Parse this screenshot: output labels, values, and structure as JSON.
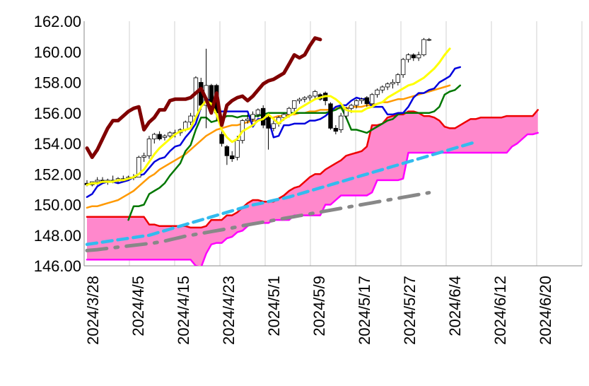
{
  "chart_data": {
    "type": "line",
    "title": "",
    "xlabel": "",
    "ylabel": "",
    "ylim": [
      146,
      162
    ],
    "yticks": [
      "162.00",
      "160.00",
      "158.00",
      "156.00",
      "154.00",
      "152.00",
      "150.00",
      "148.00",
      "146.00"
    ],
    "xticks": [
      "2024/3/28",
      "2024/4/5",
      "2024/4/15",
      "2024/4/23",
      "2024/5/1",
      "2024/5/9",
      "2024/5/17",
      "2024/5/27",
      "2024/6/4",
      "2024/6/12",
      "2024/6/20"
    ],
    "grid": "vertical",
    "colors": {
      "cloud": "#ff88cc",
      "span_a": "#ee0000",
      "span_b": "#ff00ff",
      "lagging": "#800000",
      "conversion": "#0000dd",
      "base": "#007700",
      "yellow_ma": "#ffff00",
      "orange_ma": "#ff9900",
      "blue_dashed": "#33bbee",
      "gray_dashdot": "#888888"
    },
    "candles_ohlc": [
      [
        151.4,
        151.6,
        151.2,
        151.3
      ],
      [
        151.3,
        151.5,
        151.2,
        151.5
      ],
      [
        151.5,
        151.8,
        151.3,
        151.6
      ],
      [
        151.6,
        151.8,
        151.4,
        151.5
      ],
      [
        151.5,
        151.7,
        151.3,
        151.6
      ],
      [
        151.6,
        151.9,
        151.4,
        151.6
      ],
      [
        151.6,
        151.8,
        151.4,
        151.7
      ],
      [
        151.7,
        151.9,
        151.5,
        151.7
      ],
      [
        151.7,
        151.9,
        151.6,
        151.8
      ],
      [
        151.8,
        152.0,
        151.6,
        151.8
      ],
      [
        151.8,
        153.2,
        151.8,
        153.1
      ],
      [
        153.1,
        153.4,
        152.8,
        153.2
      ],
      [
        153.2,
        154.5,
        153.0,
        154.3
      ],
      [
        154.3,
        154.7,
        154.0,
        154.6
      ],
      [
        154.6,
        154.8,
        154.2,
        154.3
      ],
      [
        154.4,
        154.6,
        154.2,
        154.5
      ],
      [
        154.5,
        154.8,
        154.3,
        154.7
      ],
      [
        154.7,
        154.9,
        154.4,
        154.7
      ],
      [
        154.7,
        155.0,
        154.5,
        154.9
      ],
      [
        154.9,
        155.5,
        154.8,
        155.4
      ],
      [
        155.4,
        156.0,
        155.2,
        155.8
      ],
      [
        155.8,
        158.4,
        155.6,
        158.3
      ],
      [
        158.0,
        158.3,
        156.2,
        156.5
      ],
      [
        156.5,
        160.2,
        155.0,
        157.8
      ],
      [
        157.8,
        157.9,
        156.0,
        156.2
      ],
      [
        157.8,
        157.9,
        155.5,
        156.0
      ],
      [
        154.6,
        154.8,
        153.8,
        154.0
      ],
      [
        153.8,
        153.9,
        152.6,
        153.2
      ],
      [
        153.2,
        153.5,
        152.8,
        153.0
      ],
      [
        153.1,
        154.5,
        152.9,
        154.2
      ],
      [
        154.2,
        155.6,
        154.0,
        155.5
      ],
      [
        155.5,
        155.9,
        155.3,
        155.6
      ],
      [
        155.6,
        156.1,
        155.4,
        155.9
      ],
      [
        155.9,
        156.3,
        155.7,
        156.2
      ],
      [
        156.3,
        156.5,
        155.0,
        155.2
      ],
      [
        155.7,
        155.9,
        153.6,
        155.0
      ],
      [
        155.0,
        155.5,
        154.8,
        155.3
      ],
      [
        155.3,
        155.8,
        155.1,
        155.7
      ],
      [
        155.7,
        156.0,
        155.5,
        155.9
      ],
      [
        155.9,
        156.4,
        155.7,
        156.3
      ],
      [
        156.3,
        156.8,
        156.1,
        156.8
      ],
      [
        156.8,
        157.0,
        156.6,
        156.9
      ],
      [
        156.9,
        157.1,
        156.7,
        157.0
      ],
      [
        157.0,
        157.2,
        156.8,
        157.1
      ],
      [
        157.1,
        157.5,
        156.9,
        157.4
      ],
      [
        157.2,
        157.3,
        156.8,
        156.9
      ],
      [
        157.3,
        157.4,
        156.5,
        156.8
      ],
      [
        156.6,
        156.7,
        154.9,
        155.0
      ],
      [
        155.0,
        155.2,
        154.6,
        154.8
      ],
      [
        154.9,
        156.0,
        154.7,
        155.8
      ],
      [
        155.8,
        156.4,
        155.6,
        156.3
      ],
      [
        156.3,
        156.6,
        156.0,
        156.5
      ],
      [
        156.5,
        156.9,
        156.3,
        156.8
      ],
      [
        156.8,
        157.0,
        156.6,
        156.9
      ],
      [
        157.0,
        157.1,
        156.4,
        156.6
      ],
      [
        156.6,
        157.3,
        156.4,
        157.2
      ],
      [
        157.2,
        157.6,
        157.0,
        157.5
      ],
      [
        157.5,
        157.8,
        157.3,
        157.7
      ],
      [
        157.7,
        158.0,
        157.5,
        157.9
      ],
      [
        157.9,
        158.2,
        157.6,
        158.0
      ],
      [
        158.0,
        158.6,
        157.8,
        158.5
      ],
      [
        158.5,
        159.6,
        158.3,
        159.5
      ],
      [
        159.5,
        159.9,
        159.3,
        159.8
      ],
      [
        159.8,
        159.9,
        159.4,
        159.6
      ],
      [
        159.6,
        160.0,
        159.4,
        159.8
      ],
      [
        159.8,
        160.9,
        159.7,
        160.8
      ],
      [
        160.8,
        160.9,
        160.7,
        160.8
      ]
    ],
    "series": [
      {
        "key": "lagging",
        "start": 0,
        "values": [
          153.7,
          153.1,
          153.6,
          154.3,
          155.0,
          155.5,
          155.5,
          155.8,
          156.1,
          156.3,
          156.4,
          154.9,
          155.4,
          155.7,
          156.2,
          156.2,
          156.8,
          156.9,
          156.9,
          156.9,
          157.0,
          157.3,
          157.6,
          156.9,
          156.0,
          157.3,
          155.2,
          156.5,
          156.8,
          157.0,
          157.1,
          156.8,
          157.1,
          157.5,
          157.9,
          158.1,
          158.2,
          158.4,
          158.6,
          159.2,
          159.8,
          159.6,
          159.8,
          160.4,
          160.9,
          160.8
        ]
      },
      {
        "key": "conversion",
        "start": 0,
        "values": [
          150.5,
          150.7,
          151.2,
          151.4,
          151.5,
          151.5,
          151.4,
          151.5,
          151.6,
          151.8,
          151.9,
          152.0,
          152.4,
          152.8,
          153.0,
          153.1,
          153.5,
          153.8,
          153.9,
          154.4,
          154.8,
          155.3,
          156.4,
          156.8,
          156.9,
          156.1,
          156.1,
          156.1,
          156.1,
          156.1,
          156.1,
          156.1,
          155.1,
          155.6,
          155.6,
          155.6,
          154.4,
          154.5,
          155.2,
          155.2,
          155.3,
          155.3,
          155.3,
          155.5,
          155.5,
          155.6,
          155.8,
          156.1,
          156.4,
          156.5,
          156.5,
          156.8,
          157.0,
          156.9,
          156.9,
          156.4,
          156.4,
          156.4,
          155.9,
          155.9,
          156.0,
          156.0,
          156.4,
          157.0,
          157.3,
          157.3,
          157.5,
          157.6,
          158.0,
          158.2,
          158.4,
          158.9,
          159.0
        ]
      },
      {
        "key": "base",
        "start": 8,
        "values": [
          149.0,
          149.9,
          149.9,
          150.0,
          150.7,
          150.9,
          151.1,
          151.4,
          151.9,
          152.3,
          152.7,
          153.5,
          153.9,
          154.9,
          155.7,
          155.7,
          155.4,
          155.5,
          155.6,
          155.8,
          155.8,
          155.7,
          155.8,
          155.8,
          155.8,
          155.8,
          155.9,
          156.0,
          156.0,
          156.0,
          156.0,
          156.0,
          156.0,
          156.0,
          156.0,
          156.0,
          156.0,
          156.0,
          156.0,
          156.1,
          156.2,
          156.4,
          155.7,
          154.9,
          154.9,
          154.8,
          154.7,
          154.9,
          155.1,
          155.3,
          155.5,
          155.6,
          155.9,
          156.0,
          156.0,
          156.0,
          156.0,
          156.0,
          156.0,
          156.1,
          156.4,
          157.2,
          157.4,
          157.5,
          157.8
        ]
      },
      {
        "key": "yellow_ma",
        "start": 0,
        "values": [
          151.3,
          151.4,
          151.4,
          151.5,
          151.5,
          151.5,
          151.6,
          151.6,
          151.7,
          151.8,
          152.0,
          152.3,
          152.8,
          153.3,
          153.7,
          154.0,
          154.3,
          154.6,
          154.8,
          154.9,
          155.0,
          155.7,
          156.4,
          156.8,
          156.6,
          155.9,
          154.9,
          154.4,
          154.1,
          154.3,
          154.8,
          155.0,
          155.2,
          155.5,
          155.6,
          155.9,
          155.6,
          155.3,
          155.6,
          155.8,
          156.0,
          156.3,
          156.5,
          156.7,
          156.9,
          157.0,
          157.1,
          157.1,
          156.9,
          156.6,
          156.2,
          156.1,
          156.1,
          156.1,
          156.3,
          156.4,
          156.6,
          156.7,
          157.0,
          157.2,
          157.4,
          157.6,
          157.8,
          157.9,
          158.1,
          158.3,
          158.6,
          158.9,
          159.3,
          159.8,
          160.2
        ]
      },
      {
        "key": "orange_ma",
        "start": 0,
        "values": [
          149.8,
          149.9,
          149.9,
          150.0,
          150.1,
          150.2,
          150.3,
          150.5,
          150.7,
          150.9,
          151.2,
          151.5,
          151.8,
          152.0,
          152.3,
          152.5,
          152.7,
          152.9,
          153.1,
          153.3,
          153.6,
          153.9,
          154.2,
          154.5,
          154.7,
          154.9,
          155.0,
          155.1,
          155.2,
          155.2,
          155.3,
          155.4,
          155.5,
          155.5,
          155.6,
          155.7,
          155.7,
          155.8,
          155.8,
          155.9,
          155.9,
          156.0,
          156.0,
          156.1,
          156.1,
          156.2,
          156.2,
          156.2,
          156.3,
          156.3,
          156.3,
          156.4,
          156.4,
          156.4,
          156.5,
          156.5,
          156.6,
          156.7,
          156.7,
          156.8,
          156.9,
          156.9,
          157.0,
          157.1,
          157.2,
          157.3,
          157.4,
          157.5,
          157.6,
          157.7,
          157.8
        ]
      },
      {
        "key": "span_a",
        "start": 0,
        "values": [
          149.2,
          149.2,
          149.2,
          149.2,
          149.2,
          149.2,
          149.2,
          149.2,
          149.2,
          149.2,
          149.2,
          149.2,
          148.7,
          148.7,
          148.6,
          148.6,
          148.6,
          148.6,
          148.6,
          148.6,
          148.5,
          148.5,
          148.5,
          148.6,
          149.0,
          149.0,
          149.0,
          149.3,
          149.3,
          149.5,
          149.8,
          150.1,
          150.3,
          150.3,
          150.2,
          150.2,
          150.2,
          150.4,
          150.6,
          150.9,
          151.1,
          151.2,
          151.5,
          151.8,
          152.0,
          152.0,
          152.3,
          152.5,
          152.7,
          152.9,
          153.2,
          153.3,
          153.4,
          153.5,
          153.8,
          155.2,
          155.2,
          155.3,
          155.7,
          155.8,
          155.9,
          155.9,
          156.1,
          156.1,
          156.0,
          155.8,
          155.8,
          155.7,
          155.5,
          155.1,
          155.0,
          155.0,
          155.2,
          155.4,
          155.6,
          155.6,
          155.7,
          155.7,
          155.7,
          155.7,
          155.7,
          155.8,
          155.8,
          155.8,
          155.8,
          155.8,
          155.8,
          156.2
        ]
      },
      {
        "key": "span_b",
        "start": 0,
        "values": [
          146.4,
          146.4,
          146.4,
          146.4,
          146.4,
          146.4,
          146.4,
          146.4,
          146.4,
          146.4,
          146.4,
          146.4,
          146.4,
          146.4,
          146.4,
          146.4,
          146.4,
          146.4,
          146.4,
          146.4,
          146.4,
          146.0,
          145.9,
          146.8,
          147.4,
          147.5,
          147.5,
          147.8,
          147.9,
          148.2,
          148.3,
          148.6,
          148.8,
          148.8,
          148.8,
          148.8,
          149.0,
          149.0,
          149.0,
          149.0,
          149.3,
          149.3,
          149.3,
          149.3,
          149.3,
          149.3,
          150.0,
          150.0,
          150.3,
          150.6,
          150.6,
          150.6,
          150.6,
          150.6,
          150.6,
          150.8,
          151.6,
          151.6,
          151.6,
          151.6,
          151.6,
          151.7,
          153.4,
          153.4,
          153.4,
          153.4,
          153.4,
          153.4,
          153.4,
          153.4,
          153.4,
          153.4,
          153.4,
          153.4,
          153.4,
          153.4,
          153.4,
          153.4,
          153.4,
          153.4,
          153.4,
          153.4,
          153.8,
          154.0,
          154.3,
          154.6,
          154.6,
          154.7
        ]
      },
      {
        "key": "blue_dashed",
        "start": 0,
        "values": [
          147.4,
          147.45,
          147.5,
          147.55,
          147.6,
          147.65,
          147.7,
          147.75,
          147.8,
          147.85,
          147.9,
          147.95,
          148.0,
          148.1,
          148.2,
          148.3,
          148.4,
          148.5,
          148.6,
          148.7,
          148.8,
          148.9,
          149.0,
          149.1,
          149.2,
          149.3,
          149.4,
          149.5,
          149.6,
          149.7,
          149.8,
          149.9,
          149.98,
          150.05,
          150.12,
          150.2,
          150.28,
          150.35,
          150.42,
          150.5,
          150.6,
          150.7,
          150.8,
          150.9,
          151.0,
          151.1,
          151.2,
          151.3,
          151.4,
          151.5,
          151.6,
          151.7,
          151.8,
          151.9,
          152.0,
          152.1,
          152.2,
          152.3,
          152.4,
          152.5,
          152.6,
          152.7,
          152.8,
          152.9,
          153.0,
          153.1,
          153.2,
          153.3,
          153.4,
          153.5,
          153.6,
          153.7,
          153.8,
          153.9,
          154.0,
          154.1
        ]
      },
      {
        "key": "gray_dashdot",
        "start": 0,
        "values": [
          147.0,
          147.03,
          147.06,
          147.1,
          147.14,
          147.18,
          147.22,
          147.26,
          147.3,
          147.34,
          147.38,
          147.42,
          147.46,
          147.5,
          147.56,
          147.62,
          147.7,
          147.78,
          147.86,
          147.94,
          148.0,
          148.06,
          148.12,
          148.18,
          148.24,
          148.3,
          148.36,
          148.42,
          148.48,
          148.55,
          148.62,
          148.68,
          148.74,
          148.8,
          148.86,
          148.92,
          148.98,
          149.04,
          149.1,
          149.16,
          149.22,
          149.28,
          149.34,
          149.4,
          149.46,
          149.52,
          149.58,
          149.64,
          149.7,
          149.76,
          149.82,
          149.88,
          149.94,
          150.0,
          150.06,
          150.12,
          150.18,
          150.24,
          150.3,
          150.36,
          150.42,
          150.48,
          150.54,
          150.6,
          150.66,
          150.72,
          150.78
        ]
      }
    ]
  }
}
